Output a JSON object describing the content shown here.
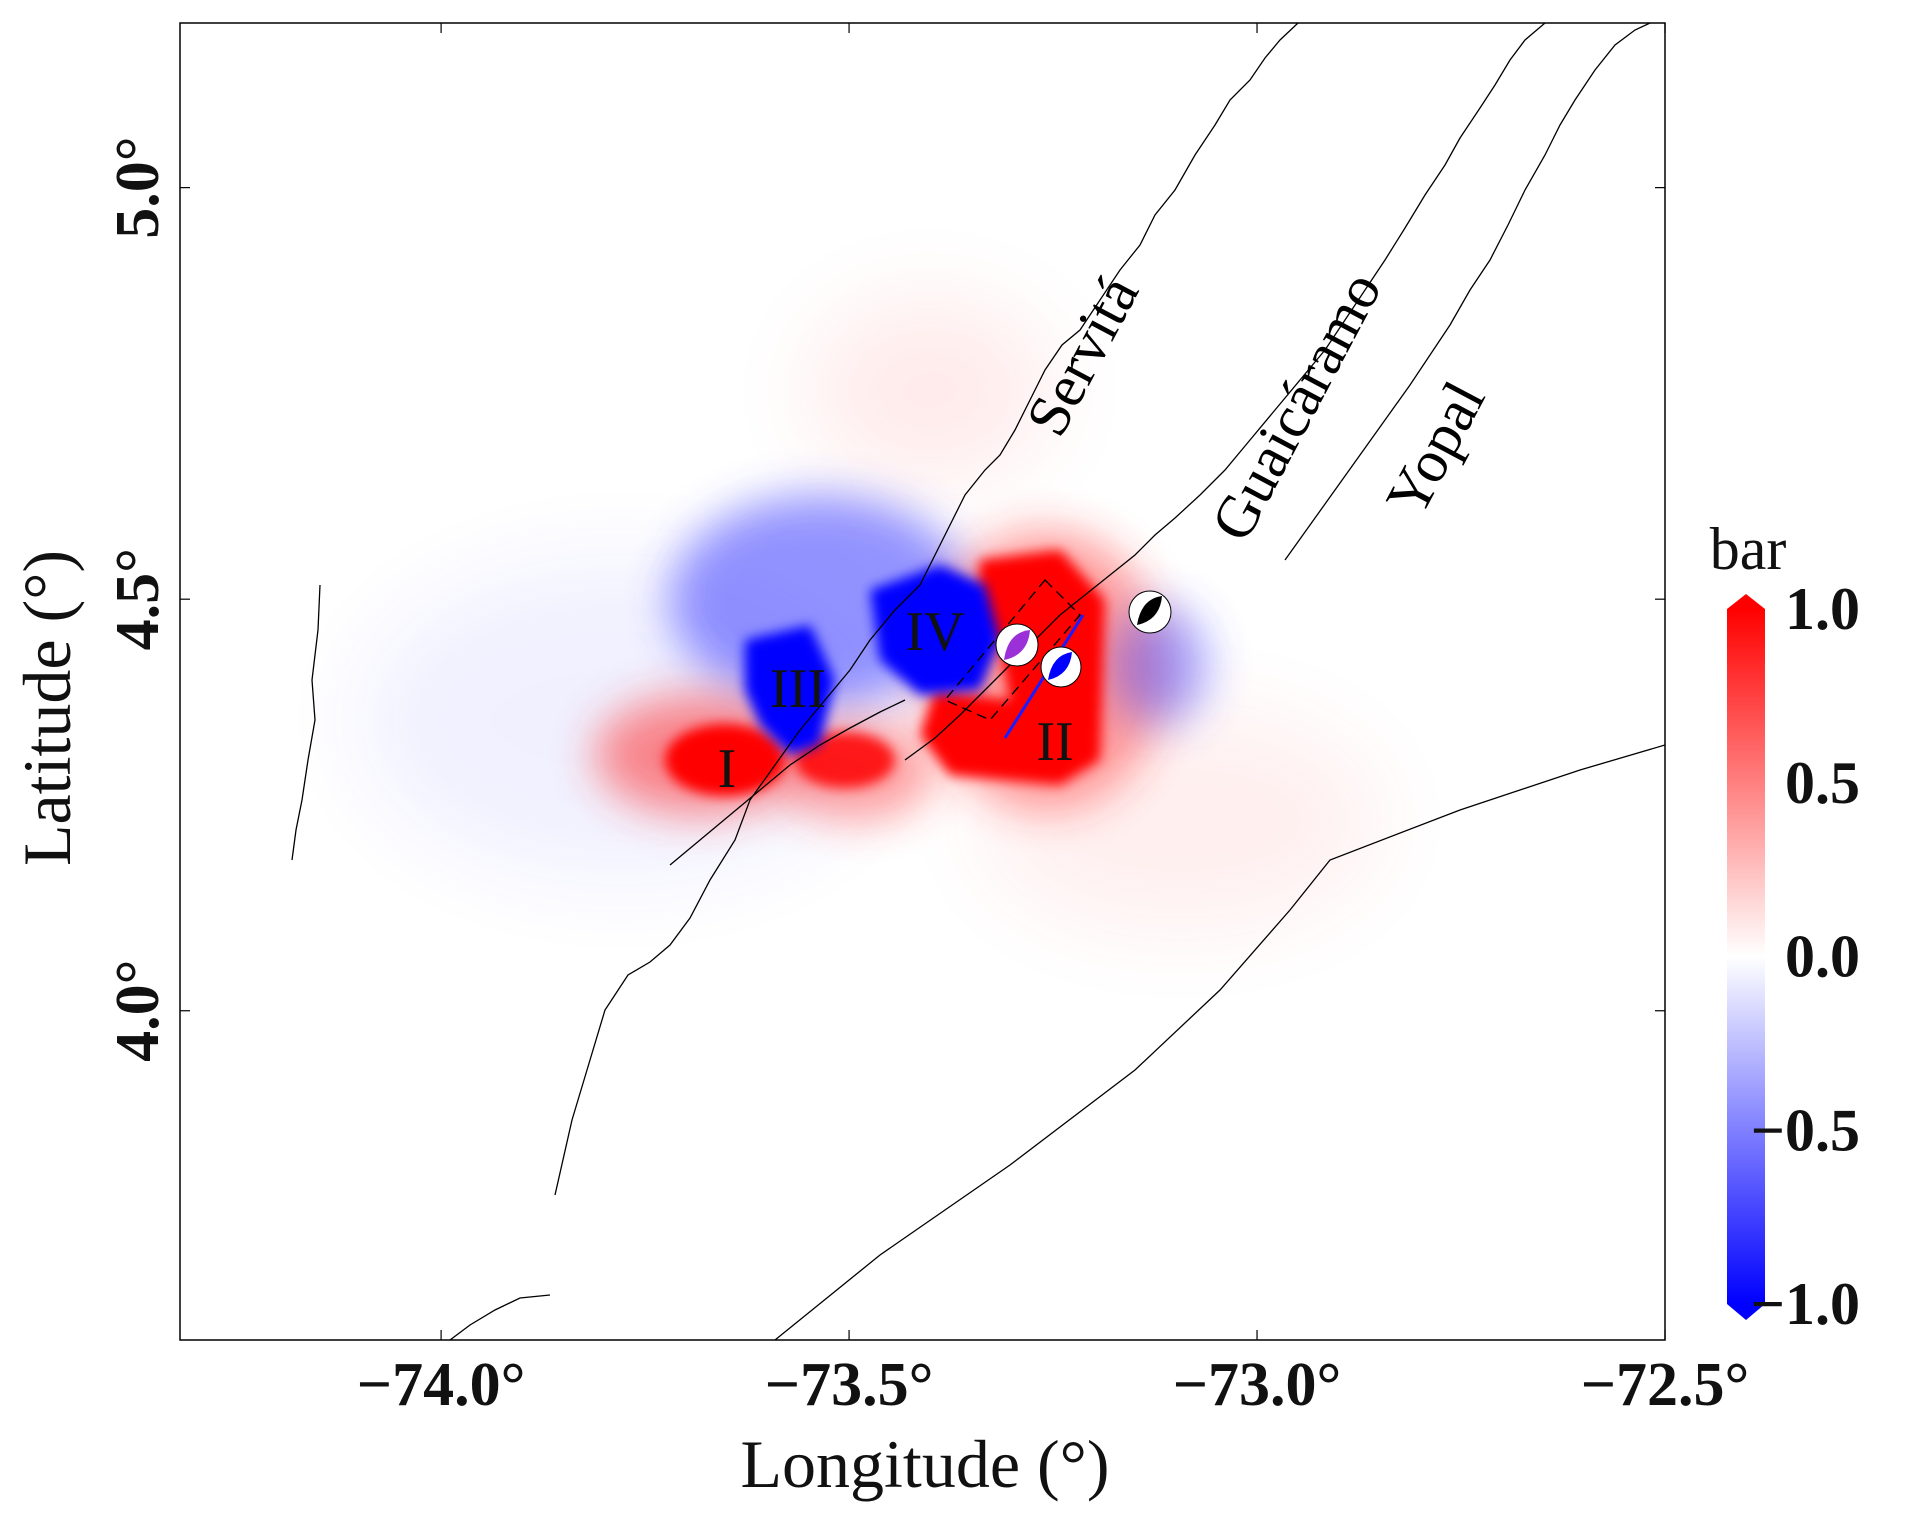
{
  "map": {
    "xlabel": "Longitude (°)",
    "ylabel": "Latitude (°)",
    "x_ticks": [
      {
        "value": -74.0,
        "label": "−74.0°"
      },
      {
        "value": -73.5,
        "label": "−73.5°"
      },
      {
        "value": -73.0,
        "label": "−73.0°"
      },
      {
        "value": -72.5,
        "label": "−72.5°"
      }
    ],
    "y_ticks": [
      {
        "value": 4.0,
        "label": "4.0°"
      },
      {
        "value": 4.5,
        "label": "4.5°"
      },
      {
        "value": 5.0,
        "label": "5.0°"
      }
    ],
    "fault_labels": [
      "Servitá",
      "Guaicáramo",
      "Yopal"
    ],
    "region_labels": [
      "I",
      "II",
      "III",
      "IV"
    ]
  },
  "colorbar": {
    "unit": "bar",
    "ticks": [
      {
        "value": 1.0,
        "label": "1.0"
      },
      {
        "value": 0.5,
        "label": "0.5"
      },
      {
        "value": 0.0,
        "label": "0.0"
      },
      {
        "value": -0.5,
        "label": "−0.5"
      },
      {
        "value": -1.0,
        "label": "−1.0"
      }
    ],
    "colors": {
      "max": "#ff0000",
      "mid": "#ffffff",
      "min": "#0000ff"
    }
  },
  "colors": {
    "positive": "#ff0000",
    "negative": "#0000ff",
    "fault_line": "#000000",
    "mechanism_purple": "#9b30d9",
    "mechanism_blue": "#0000ff",
    "mechanism_black": "#000000"
  }
}
